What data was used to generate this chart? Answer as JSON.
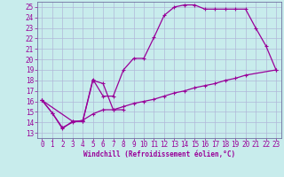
{
  "xlabel": "Windchill (Refroidissement éolien,°C)",
  "bg_color": "#c8ecec",
  "grid_color": "#b0b8d8",
  "line_color": "#990099",
  "spine_color": "#7070a0",
  "xlim": [
    -0.5,
    23.5
  ],
  "ylim": [
    12.5,
    25.5
  ],
  "xticks": [
    0,
    1,
    2,
    3,
    4,
    5,
    6,
    7,
    8,
    9,
    10,
    11,
    12,
    13,
    14,
    15,
    16,
    17,
    18,
    19,
    20,
    21,
    22,
    23
  ],
  "yticks": [
    13,
    14,
    15,
    16,
    17,
    18,
    19,
    20,
    21,
    22,
    23,
    24,
    25
  ],
  "line1_x": [
    0,
    1,
    2,
    3,
    4,
    5,
    6,
    7,
    8
  ],
  "line1_y": [
    16.1,
    14.9,
    13.4,
    14.1,
    14.1,
    18.0,
    17.7,
    15.2,
    15.2
  ],
  "line2_x": [
    0,
    3,
    4,
    5,
    6,
    7,
    8,
    9,
    10,
    11,
    12,
    13,
    14,
    15,
    16,
    17,
    18,
    19,
    20,
    21,
    22,
    23
  ],
  "line2_y": [
    16.1,
    14.1,
    14.1,
    18.1,
    16.5,
    16.5,
    19.0,
    20.1,
    20.1,
    22.1,
    24.2,
    25.0,
    25.2,
    25.2,
    24.8,
    24.8,
    24.8,
    24.8,
    24.8,
    23.0,
    21.3,
    19.0
  ],
  "line3_x": [
    0,
    1,
    2,
    3,
    4,
    5,
    6,
    7,
    8,
    9,
    10,
    11,
    12,
    13,
    14,
    15,
    16,
    17,
    18,
    19,
    20,
    23
  ],
  "line3_y": [
    16.1,
    14.9,
    13.5,
    14.0,
    14.2,
    14.8,
    15.2,
    15.2,
    15.5,
    15.8,
    16.0,
    16.2,
    16.5,
    16.8,
    17.0,
    17.3,
    17.5,
    17.7,
    18.0,
    18.2,
    18.5,
    19.0
  ],
  "tick_fontsize": 5.5,
  "xlabel_fontsize": 5.5,
  "linewidth": 0.9,
  "markersize": 3.5
}
